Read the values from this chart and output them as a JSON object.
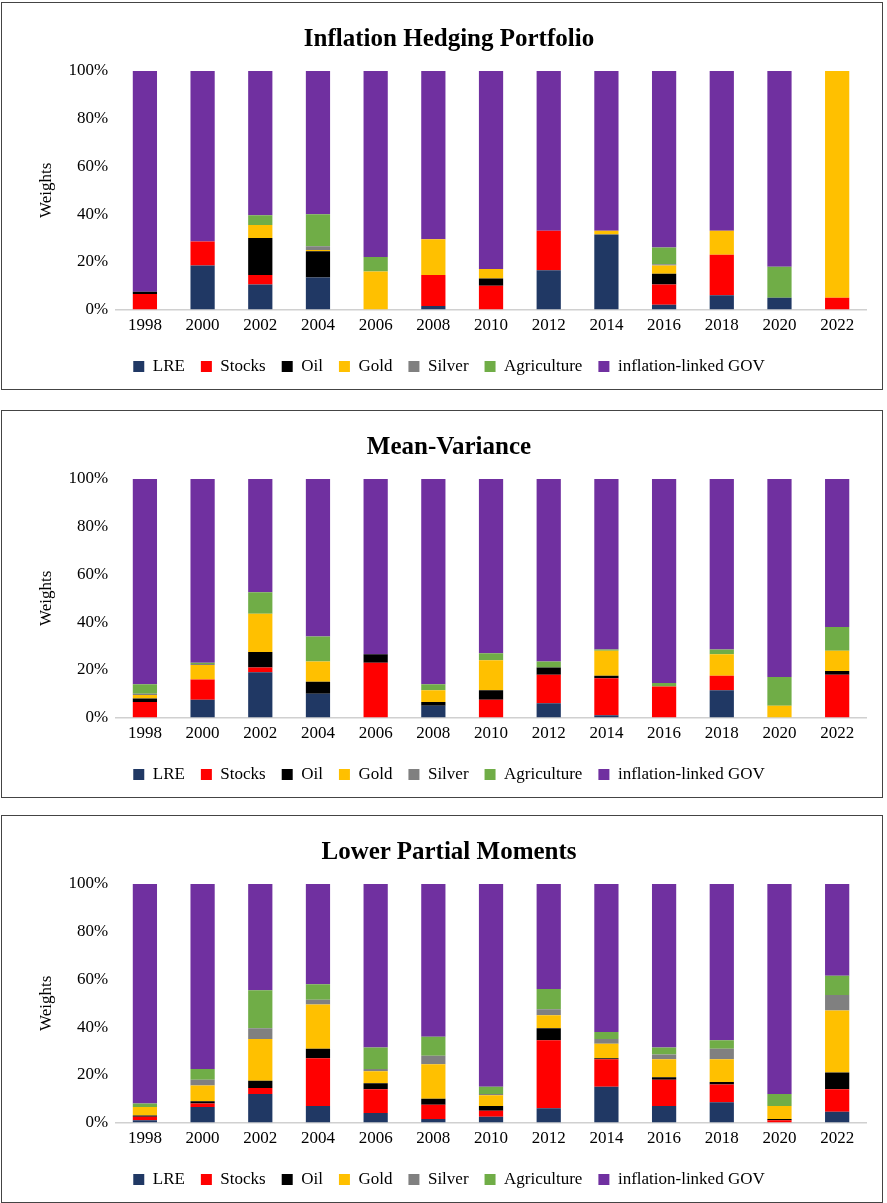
{
  "chart_data": [
    {
      "type": "bar",
      "title": "Inflation Hedging Portfolio",
      "ylabel": "Weights",
      "stacked": true,
      "legend": "bottom",
      "grid": false,
      "categories": [
        "1998",
        "2000",
        "2002",
        "2004",
        "2006",
        "2008",
        "2010",
        "2012",
        "2014",
        "2016",
        "2018",
        "2020",
        "2022"
      ],
      "ylim": [
        0,
        100
      ],
      "yticks": [
        {
          "value": 0,
          "label": "0%"
        },
        {
          "value": 20,
          "label": "20%"
        },
        {
          "value": 40,
          "label": "40%"
        },
        {
          "value": 60,
          "label": "60%"
        },
        {
          "value": 80,
          "label": "80%"
        },
        {
          "value": 100,
          "label": "100%"
        }
      ],
      "series": [
        {
          "name": "LRE",
          "color": "#203864",
          "values": [
            0,
            18.5,
            10.5,
            13.5,
            0,
            1.5,
            0,
            16.5,
            31.5,
            2,
            6,
            5,
            0
          ]
        },
        {
          "name": "Stocks",
          "color": "#ff0000",
          "values": [
            6.5,
            10,
            4,
            0,
            0,
            13,
            10,
            16.5,
            0,
            8.5,
            17,
            0,
            5
          ]
        },
        {
          "name": "Oil",
          "color": "#000000",
          "values": [
            1,
            0,
            15.5,
            11,
            0,
            0,
            3,
            0,
            0,
            4.5,
            0,
            0,
            0
          ]
        },
        {
          "name": "Gold",
          "color": "#ffc000",
          "values": [
            0,
            0,
            5.5,
            0.5,
            16,
            15,
            4,
            0,
            1.5,
            3.5,
            10,
            0,
            95
          ]
        },
        {
          "name": "Silver",
          "color": "#808080",
          "values": [
            0,
            0,
            0,
            1.5,
            0,
            0,
            0,
            0,
            0,
            0.5,
            0,
            0,
            0
          ]
        },
        {
          "name": "Agriculture",
          "color": "#70ad47",
          "values": [
            0,
            0,
            4,
            13.5,
            6,
            0,
            0,
            0,
            0,
            7,
            0,
            13,
            0
          ]
        },
        {
          "name": "inflation-linked GOV",
          "color": "#7030a0",
          "values": [
            92.5,
            71.5,
            60.5,
            60,
            78,
            70.5,
            83,
            67,
            67,
            74,
            67,
            82,
            0
          ]
        }
      ]
    },
    {
      "type": "bar",
      "title": "Mean-Variance",
      "ylabel": "Weights",
      "stacked": true,
      "legend": "bottom",
      "grid": false,
      "categories": [
        "1998",
        "2000",
        "2002",
        "2004",
        "2006",
        "2008",
        "2010",
        "2012",
        "2014",
        "2016",
        "2018",
        "2020",
        "2022"
      ],
      "ylim": [
        0,
        100
      ],
      "yticks": [
        {
          "value": 0,
          "label": "0%"
        },
        {
          "value": 20,
          "label": "20%"
        },
        {
          "value": 40,
          "label": "40%"
        },
        {
          "value": 60,
          "label": "60%"
        },
        {
          "value": 80,
          "label": "80%"
        },
        {
          "value": 100,
          "label": "100%"
        }
      ],
      "series": [
        {
          "name": "LRE",
          "color": "#203864",
          "values": [
            0,
            7.5,
            19,
            10,
            0,
            5,
            0,
            6,
            1,
            0,
            11.5,
            0,
            0
          ]
        },
        {
          "name": "Stocks",
          "color": "#ff0000",
          "values": [
            6.5,
            8.5,
            2,
            0,
            23,
            0,
            7.5,
            12,
            15.5,
            13,
            6,
            0,
            18
          ]
        },
        {
          "name": "Oil",
          "color": "#000000",
          "values": [
            1.5,
            0,
            6.5,
            5,
            3.5,
            1.5,
            4,
            3,
            1,
            0,
            0,
            0,
            1.5
          ]
        },
        {
          "name": "Gold",
          "color": "#ffc000",
          "values": [
            1.5,
            6,
            16,
            8.5,
            0,
            5,
            12.5,
            0,
            10.5,
            0,
            9,
            5,
            8.5
          ]
        },
        {
          "name": "Silver",
          "color": "#808080",
          "values": [
            0.5,
            0.5,
            0,
            0,
            0,
            0,
            0,
            0,
            0,
            0,
            0,
            0,
            0
          ]
        },
        {
          "name": "Agriculture",
          "color": "#70ad47",
          "values": [
            4,
            0.5,
            9,
            10.5,
            0,
            2.5,
            3,
            2.5,
            0.5,
            1.5,
            2,
            12,
            10
          ]
        },
        {
          "name": "inflation-linked GOV",
          "color": "#7030a0",
          "values": [
            86,
            77,
            47.5,
            66,
            73.5,
            86,
            73,
            76.5,
            71.5,
            85.5,
            71.5,
            83,
            62
          ]
        }
      ]
    },
    {
      "type": "bar",
      "title": "Lower Partial Moments",
      "ylabel": "Weights",
      "stacked": true,
      "legend": "bottom",
      "grid": false,
      "categories": [
        "1998",
        "2000",
        "2002",
        "2004",
        "2006",
        "2008",
        "2010",
        "2012",
        "2014",
        "2016",
        "2018",
        "2020",
        "2022"
      ],
      "ylim": [
        0,
        100
      ],
      "yticks": [
        {
          "value": 0,
          "label": "0%"
        },
        {
          "value": 20,
          "label": "20%"
        },
        {
          "value": 40,
          "label": "40%"
        },
        {
          "value": 60,
          "label": "60%"
        },
        {
          "value": 80,
          "label": "80%"
        },
        {
          "value": 100,
          "label": "100%"
        }
      ],
      "series": [
        {
          "name": "LRE",
          "color": "#203864",
          "values": [
            1,
            6.5,
            12,
            7,
            4,
            1.5,
            2.5,
            6,
            15,
            7,
            8.5,
            0,
            4.5
          ]
        },
        {
          "name": "Stocks",
          "color": "#ff0000",
          "values": [
            1.5,
            1.5,
            2.5,
            20,
            10,
            6,
            2.5,
            28.5,
            11.5,
            11,
            7.5,
            1,
            9.5
          ]
        },
        {
          "name": "Oil",
          "color": "#000000",
          "values": [
            0.5,
            1,
            3,
            4,
            2.5,
            2.5,
            2,
            5,
            0.5,
            1,
            1,
            0.5,
            7
          ]
        },
        {
          "name": "Gold",
          "color": "#ffc000",
          "values": [
            3.5,
            6.5,
            17.5,
            18.5,
            5,
            14.5,
            4.5,
            5.5,
            6,
            7.5,
            9.5,
            5.5,
            26
          ]
        },
        {
          "name": "Silver",
          "color": "#808080",
          "values": [
            0,
            2.5,
            4.5,
            2,
            1,
            3.5,
            0.5,
            2.5,
            2,
            2,
            4.5,
            0,
            6.5
          ]
        },
        {
          "name": "Agriculture",
          "color": "#70ad47",
          "values": [
            1.5,
            4.5,
            16,
            6.5,
            9,
            8,
            3,
            8.5,
            3,
            3,
            3.5,
            5,
            8
          ]
        },
        {
          "name": "inflation-linked GOV",
          "color": "#7030a0",
          "values": [
            92,
            77.5,
            44.5,
            42,
            68.5,
            64,
            85,
            44,
            62,
            68.5,
            65.5,
            88,
            38.5
          ]
        }
      ]
    }
  ]
}
